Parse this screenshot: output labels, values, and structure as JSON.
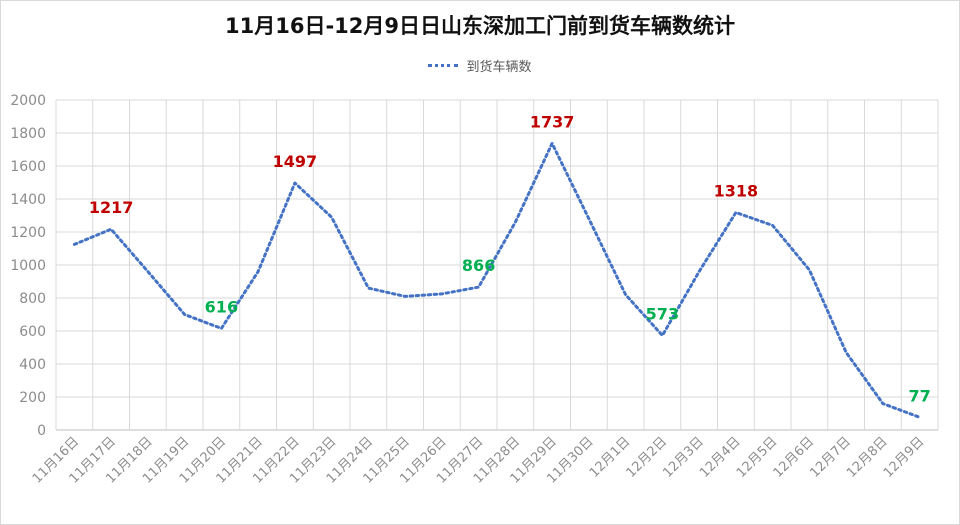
{
  "chart_data": {
    "type": "line",
    "title": "11月16日-12月9日日山东深加工门前到货车辆数统计",
    "xlabel": "",
    "ylabel": "",
    "ylim": [
      0,
      2000
    ],
    "yticks": [
      0,
      200,
      400,
      600,
      800,
      1000,
      1200,
      1400,
      1600,
      1800,
      2000
    ],
    "grid": true,
    "legend_position": "top",
    "categories": [
      "11月16日",
      "11月17日",
      "11月18日",
      "11月19日",
      "11月20日",
      "11月21日",
      "11月22日",
      "11月23日",
      "11月24日",
      "11月25日",
      "11月26日",
      "11月27日",
      "11月28日",
      "11月29日",
      "11月30日",
      "12月1日",
      "12月2日",
      "12月3日",
      "12月4日",
      "12月5日",
      "12月6日",
      "12月7日",
      "12月8日",
      "12月9日"
    ],
    "series": [
      {
        "name": "到货车辆数",
        "color": "#4472C4",
        "line_style": "dotted",
        "values": [
          1125,
          1217,
          960,
          700,
          616,
          960,
          1497,
          1290,
          860,
          810,
          825,
          866,
          1260,
          1737,
          1280,
          820,
          573,
          960,
          1318,
          1240,
          970,
          470,
          160,
          77
        ]
      }
    ],
    "annotations": [
      {
        "index": 1,
        "text": "1217",
        "color": "#C00000"
      },
      {
        "index": 4,
        "text": "616",
        "color": "#00B050"
      },
      {
        "index": 6,
        "text": "1497",
        "color": "#C00000"
      },
      {
        "index": 11,
        "text": "866",
        "color": "#00B050"
      },
      {
        "index": 13,
        "text": "1737",
        "color": "#C00000"
      },
      {
        "index": 16,
        "text": "573",
        "color": "#00B050"
      },
      {
        "index": 18,
        "text": "1318",
        "color": "#C00000"
      },
      {
        "index": 23,
        "text": "77",
        "color": "#00B050"
      }
    ]
  }
}
